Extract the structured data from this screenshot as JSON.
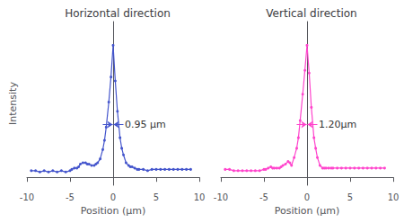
{
  "chart_data": [
    {
      "type": "line",
      "title": "Horizontal direction",
      "xlabel": "Position (μm)",
      "ylabel": "Intensity",
      "x": [
        -9.5,
        -9.0,
        -8.5,
        -8.0,
        -7.5,
        -7.0,
        -6.5,
        -6.0,
        -5.5,
        -5.0,
        -4.8,
        -4.5,
        -4.2,
        -4.0,
        -3.8,
        -3.5,
        -3.2,
        -3.0,
        -2.8,
        -2.5,
        -2.2,
        -2.0,
        -1.8,
        -1.5,
        -1.2,
        -1.0,
        -0.8,
        -0.5,
        -0.25,
        0.0,
        0.25,
        0.5,
        0.8,
        1.0,
        1.2,
        1.5,
        1.8,
        2.0,
        2.2,
        2.5,
        2.8,
        3.0,
        3.5,
        4.0,
        4.5,
        5.0,
        5.5,
        6.0,
        6.5,
        7.0,
        7.5,
        8.0,
        8.5,
        9.0
      ],
      "values": [
        0.05,
        0.05,
        0.04,
        0.05,
        0.04,
        0.05,
        0.04,
        0.05,
        0.04,
        0.05,
        0.06,
        0.07,
        0.07,
        0.08,
        0.1,
        0.11,
        0.11,
        0.1,
        0.1,
        0.09,
        0.09,
        0.1,
        0.11,
        0.14,
        0.21,
        0.28,
        0.38,
        0.57,
        0.76,
        1.0,
        0.73,
        0.5,
        0.3,
        0.22,
        0.17,
        0.11,
        0.09,
        0.08,
        0.08,
        0.07,
        0.06,
        0.06,
        0.06,
        0.05,
        0.06,
        0.06,
        0.06,
        0.06,
        0.06,
        0.06,
        0.06,
        0.06,
        0.06,
        0.06
      ],
      "color": "#4455cc",
      "marker": "circle",
      "xlim": [
        -10,
        10
      ],
      "xticks": [
        -10,
        -5,
        0,
        5,
        10
      ],
      "ylim": [
        -0.06,
        1.18
      ],
      "tick_labels": "x",
      "grid": false,
      "arrows": [
        {
          "from": -1.2,
          "to": -0.05,
          "y": 0.4
        },
        {
          "from": 1.2,
          "to": 0.05,
          "y": 0.4
        }
      ],
      "annotations": [
        {
          "text": "0.95 μm",
          "x": 1.35,
          "y": 0.4
        }
      ]
    },
    {
      "type": "line",
      "title": "Vertical direction",
      "xlabel": "Position (μm)",
      "x": [
        -9.5,
        -9.0,
        -8.5,
        -8.0,
        -7.5,
        -7.0,
        -6.5,
        -6.0,
        -5.5,
        -5.0,
        -4.8,
        -4.5,
        -4.2,
        -4.0,
        -3.8,
        -3.5,
        -3.2,
        -3.0,
        -2.8,
        -2.5,
        -2.2,
        -2.0,
        -1.8,
        -1.5,
        -1.2,
        -1.0,
        -0.8,
        -0.5,
        -0.25,
        0.0,
        0.25,
        0.5,
        0.8,
        1.0,
        1.2,
        1.5,
        1.8,
        2.0,
        2.2,
        2.5,
        2.8,
        3.0,
        3.5,
        4.0,
        4.5,
        5.0,
        5.5,
        6.0,
        6.5,
        7.0,
        7.5,
        8.0,
        8.5,
        9.0
      ],
      "values": [
        0.06,
        0.06,
        0.05,
        0.05,
        0.05,
        0.05,
        0.05,
        0.05,
        0.05,
        0.06,
        0.06,
        0.07,
        0.08,
        0.07,
        0.07,
        0.07,
        0.07,
        0.08,
        0.09,
        0.1,
        0.12,
        0.11,
        0.09,
        0.15,
        0.22,
        0.3,
        0.43,
        0.63,
        0.81,
        1.0,
        0.79,
        0.53,
        0.3,
        0.22,
        0.15,
        0.09,
        0.07,
        0.07,
        0.07,
        0.07,
        0.07,
        0.07,
        0.07,
        0.07,
        0.07,
        0.07,
        0.07,
        0.07,
        0.07,
        0.07,
        0.07,
        0.07,
        0.07,
        0.07
      ],
      "color": "#ff44cc",
      "marker": "circle",
      "xlim": [
        -10,
        10
      ],
      "xticks": [
        -10,
        -5,
        0,
        5,
        10
      ],
      "ylim": [
        -0.06,
        1.18
      ],
      "tick_labels": "x",
      "grid": false,
      "arrows": [
        {
          "from": -1.2,
          "to": -0.05,
          "y": 0.4
        },
        {
          "from": 1.2,
          "to": 0.05,
          "y": 0.4
        }
      ],
      "annotations": [
        {
          "text": "1.20μm",
          "x": 1.35,
          "y": 0.4
        }
      ]
    }
  ]
}
